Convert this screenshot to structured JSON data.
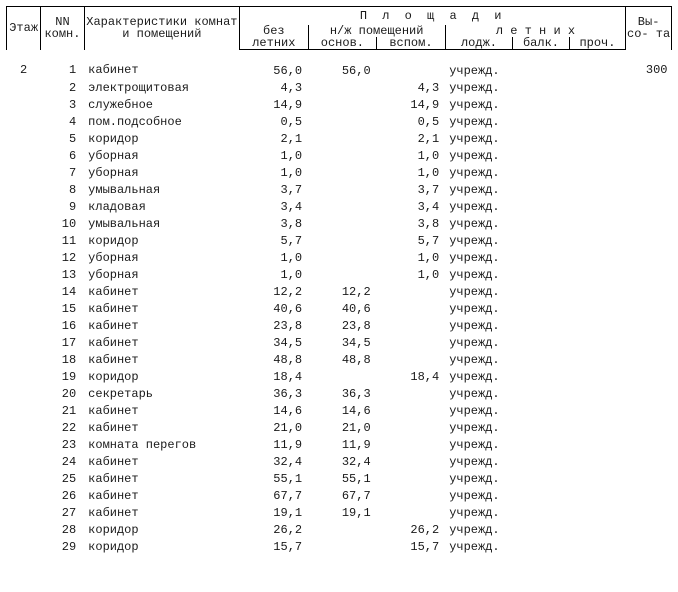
{
  "header": {
    "etazh": "Этаж",
    "nn": "NN комн.",
    "char": "Характеристики комнат и помещений",
    "ploschadi": "П л о щ а д и",
    "bez_letnih": "без летних",
    "nzh": "н/ж помещений",
    "osnov": "основ.",
    "vspom": "вспом.",
    "letnih": "л е т н и х",
    "lodzh": "лодж.",
    "balk": "балк.",
    "proch": "проч.",
    "vysota": "Вы- со- та"
  },
  "etazh": "2",
  "vysota": "300",
  "rows": [
    {
      "nn": "1",
      "name": "кабинет",
      "bez": "56,0",
      "osn": "56,0",
      "vsp": "",
      "lodzh": "учрежд."
    },
    {
      "nn": "2",
      "name": "электрощитовая",
      "bez": "4,3",
      "osn": "",
      "vsp": "4,3",
      "lodzh": "учрежд."
    },
    {
      "nn": "3",
      "name": "служебное",
      "bez": "14,9",
      "osn": "",
      "vsp": "14,9",
      "lodzh": "учрежд."
    },
    {
      "nn": "4",
      "name": "пом.подсобное",
      "bez": "0,5",
      "osn": "",
      "vsp": "0,5",
      "lodzh": "учрежд."
    },
    {
      "nn": "5",
      "name": "коридор",
      "bez": "2,1",
      "osn": "",
      "vsp": "2,1",
      "lodzh": "учрежд."
    },
    {
      "nn": "6",
      "name": "уборная",
      "bez": "1,0",
      "osn": "",
      "vsp": "1,0",
      "lodzh": "учрежд."
    },
    {
      "nn": "7",
      "name": "уборная",
      "bez": "1,0",
      "osn": "",
      "vsp": "1,0",
      "lodzh": "учрежд."
    },
    {
      "nn": "8",
      "name": "умывальная",
      "bez": "3,7",
      "osn": "",
      "vsp": "3,7",
      "lodzh": "учрежд."
    },
    {
      "nn": "9",
      "name": "кладовая",
      "bez": "3,4",
      "osn": "",
      "vsp": "3,4",
      "lodzh": "учрежд."
    },
    {
      "nn": "10",
      "name": "умывальная",
      "bez": "3,8",
      "osn": "",
      "vsp": "3,8",
      "lodzh": "учрежд."
    },
    {
      "nn": "11",
      "name": "коридор",
      "bez": "5,7",
      "osn": "",
      "vsp": "5,7",
      "lodzh": "учрежд."
    },
    {
      "nn": "12",
      "name": "уборная",
      "bez": "1,0",
      "osn": "",
      "vsp": "1,0",
      "lodzh": "учрежд."
    },
    {
      "nn": "13",
      "name": "уборная",
      "bez": "1,0",
      "osn": "",
      "vsp": "1,0",
      "lodzh": "учрежд."
    },
    {
      "nn": "14",
      "name": "кабинет",
      "bez": "12,2",
      "osn": "12,2",
      "vsp": "",
      "lodzh": "учрежд."
    },
    {
      "nn": "15",
      "name": "кабинет",
      "bez": "40,6",
      "osn": "40,6",
      "vsp": "",
      "lodzh": "учрежд."
    },
    {
      "nn": "16",
      "name": "кабинет",
      "bez": "23,8",
      "osn": "23,8",
      "vsp": "",
      "lodzh": "учрежд."
    },
    {
      "nn": "17",
      "name": "кабинет",
      "bez": "34,5",
      "osn": "34,5",
      "vsp": "",
      "lodzh": "учрежд."
    },
    {
      "nn": "18",
      "name": "кабинет",
      "bez": "48,8",
      "osn": "48,8",
      "vsp": "",
      "lodzh": "учрежд."
    },
    {
      "nn": "19",
      "name": "коридор",
      "bez": "18,4",
      "osn": "",
      "vsp": "18,4",
      "lodzh": "учрежд."
    },
    {
      "nn": "20",
      "name": "секретарь",
      "bez": "36,3",
      "osn": "36,3",
      "vsp": "",
      "lodzh": "учрежд."
    },
    {
      "nn": "21",
      "name": "кабинет",
      "bez": "14,6",
      "osn": "14,6",
      "vsp": "",
      "lodzh": "учрежд."
    },
    {
      "nn": "22",
      "name": "кабинет",
      "bez": "21,0",
      "osn": "21,0",
      "vsp": "",
      "lodzh": "учрежд."
    },
    {
      "nn": "23",
      "name": "комната перегов",
      "bez": "11,9",
      "osn": "11,9",
      "vsp": "",
      "lodzh": "учрежд."
    },
    {
      "nn": "24",
      "name": "кабинет",
      "bez": "32,4",
      "osn": "32,4",
      "vsp": "",
      "lodzh": "учрежд."
    },
    {
      "nn": "25",
      "name": "кабинет",
      "bez": "55,1",
      "osn": "55,1",
      "vsp": "",
      "lodzh": "учрежд."
    },
    {
      "nn": "26",
      "name": "кабинет",
      "bez": "67,7",
      "osn": "67,7",
      "vsp": "",
      "lodzh": "учрежд."
    },
    {
      "nn": "27",
      "name": "кабинет",
      "bez": "19,1",
      "osn": "19,1",
      "vsp": "",
      "lodzh": "учрежд."
    },
    {
      "nn": "28",
      "name": "коридор",
      "bez": "26,2",
      "osn": "",
      "vsp": "26,2",
      "lodzh": "учрежд."
    },
    {
      "nn": "29",
      "name": "коридор",
      "bez": "15,7",
      "osn": "",
      "vsp": "15,7",
      "lodzh": "учрежд."
    }
  ]
}
